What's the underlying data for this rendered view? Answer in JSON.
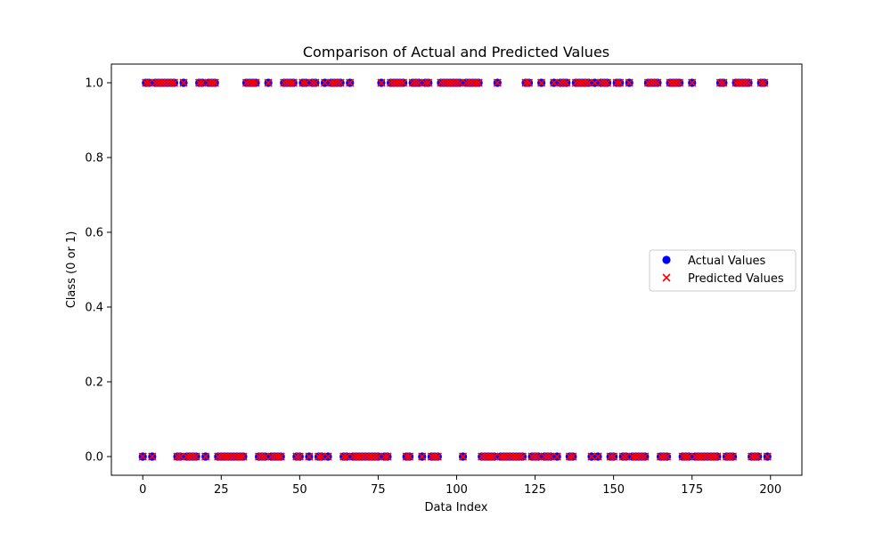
{
  "chart_data": {
    "type": "scatter",
    "title": "Comparison of Actual and Predicted Values",
    "xlabel": "Data Index",
    "ylabel": "Class (0 or 1)",
    "xlim": [
      -10,
      210
    ],
    "ylim": [
      -0.05,
      1.05
    ],
    "x_ticks": [
      0,
      25,
      50,
      75,
      100,
      125,
      150,
      175,
      200
    ],
    "y_ticks": [
      0.0,
      0.2,
      0.4,
      0.6,
      0.8,
      1.0
    ],
    "x_tick_labels": [
      "0",
      "25",
      "50",
      "75",
      "100",
      "125",
      "150",
      "175",
      "200"
    ],
    "y_tick_labels": [
      "0.0",
      "0.2",
      "0.4",
      "0.6",
      "0.8",
      "1.0"
    ],
    "legend_position": "center-right",
    "grid": false,
    "series": [
      {
        "name": "Actual Values",
        "marker": "circle",
        "color": "#0000ff",
        "ones": [
          1,
          2,
          4,
          5,
          6,
          7,
          8,
          9,
          10,
          13,
          18,
          19,
          21,
          22,
          23,
          33,
          34,
          35,
          36,
          40,
          45,
          46,
          47,
          48,
          51,
          52,
          54,
          55,
          58,
          60,
          61,
          62,
          63,
          66,
          76,
          79,
          80,
          81,
          82,
          83,
          86,
          87,
          88,
          90,
          91,
          95,
          96,
          97,
          98,
          99,
          100,
          101,
          103,
          104,
          105,
          106,
          107,
          113,
          122,
          123,
          127,
          131,
          133,
          134,
          135,
          138,
          139,
          140,
          141,
          142,
          144,
          146,
          147,
          148,
          151,
          152,
          155,
          161,
          162,
          163,
          164,
          168,
          169,
          170,
          171,
          175,
          184,
          185,
          189,
          190,
          191,
          192,
          193,
          197,
          198
        ],
        "zeros": [
          0,
          3,
          11,
          12,
          14,
          15,
          16,
          17,
          20,
          24,
          25,
          26,
          27,
          28,
          29,
          30,
          31,
          32,
          37,
          38,
          39,
          41,
          42,
          43,
          44,
          49,
          50,
          53,
          56,
          57,
          59,
          64,
          65,
          67,
          68,
          69,
          70,
          71,
          72,
          73,
          74,
          75,
          77,
          78,
          84,
          85,
          89,
          92,
          93,
          94,
          102,
          108,
          109,
          110,
          111,
          112,
          114,
          115,
          116,
          117,
          118,
          119,
          120,
          121,
          124,
          125,
          126,
          128,
          129,
          130,
          132,
          136,
          137,
          143,
          145,
          149,
          150,
          153,
          154,
          156,
          157,
          158,
          159,
          160,
          165,
          166,
          167,
          172,
          173,
          174,
          176,
          177,
          178,
          179,
          180,
          181,
          182,
          183,
          186,
          187,
          188,
          194,
          195,
          196,
          199
        ]
      },
      {
        "name": "Predicted Values",
        "marker": "x",
        "color": "#ff0000",
        "ones": [
          1,
          2,
          4,
          5,
          6,
          7,
          8,
          9,
          10,
          13,
          18,
          19,
          21,
          22,
          23,
          33,
          34,
          35,
          36,
          40,
          45,
          46,
          47,
          48,
          51,
          52,
          54,
          55,
          58,
          60,
          61,
          62,
          63,
          66,
          76,
          79,
          80,
          81,
          82,
          83,
          86,
          87,
          88,
          90,
          91,
          95,
          96,
          97,
          98,
          99,
          100,
          101,
          103,
          104,
          105,
          106,
          107,
          113,
          122,
          123,
          127,
          131,
          133,
          134,
          135,
          138,
          139,
          140,
          141,
          142,
          144,
          146,
          147,
          148,
          151,
          152,
          155,
          161,
          162,
          163,
          164,
          168,
          169,
          170,
          171,
          175,
          184,
          185,
          189,
          190,
          191,
          192,
          193,
          197,
          198
        ],
        "zeros": [
          0,
          3,
          11,
          12,
          14,
          15,
          16,
          17,
          20,
          24,
          25,
          26,
          27,
          28,
          29,
          30,
          31,
          32,
          37,
          38,
          39,
          41,
          42,
          43,
          44,
          49,
          50,
          53,
          56,
          57,
          59,
          64,
          65,
          67,
          68,
          69,
          70,
          71,
          72,
          73,
          74,
          75,
          77,
          78,
          84,
          85,
          89,
          92,
          93,
          94,
          102,
          108,
          109,
          110,
          111,
          112,
          114,
          115,
          116,
          117,
          118,
          119,
          120,
          121,
          124,
          125,
          126,
          128,
          129,
          130,
          132,
          136,
          137,
          143,
          145,
          149,
          150,
          153,
          154,
          156,
          157,
          158,
          159,
          160,
          165,
          166,
          167,
          172,
          173,
          174,
          176,
          177,
          178,
          179,
          180,
          181,
          182,
          183,
          186,
          187,
          188,
          194,
          195,
          196,
          199
        ]
      }
    ]
  }
}
